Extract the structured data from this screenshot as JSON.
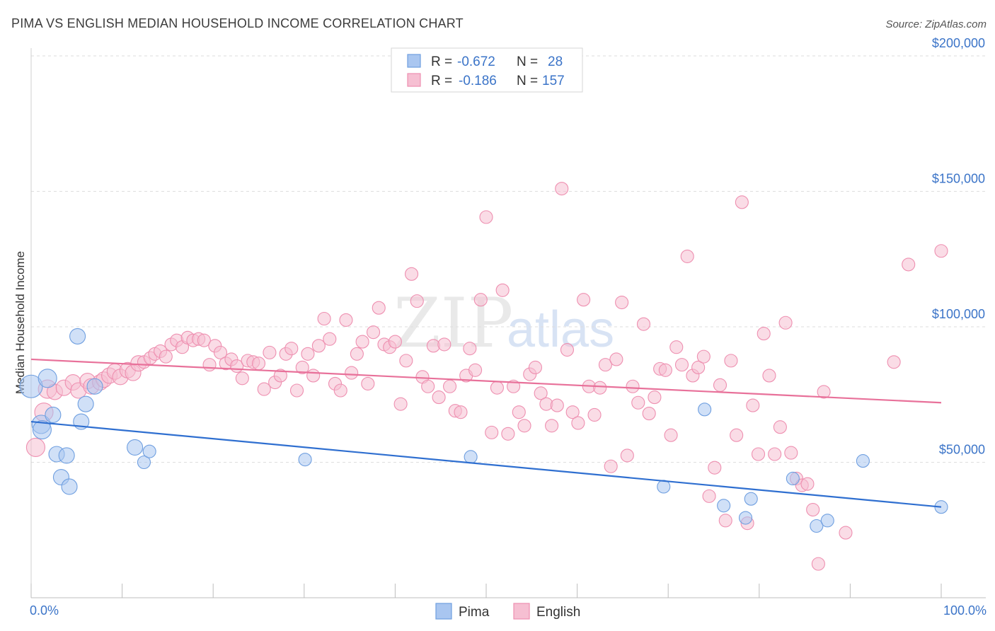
{
  "chart_data": {
    "type": "scatter",
    "title": "PIMA VS ENGLISH MEDIAN HOUSEHOLD INCOME CORRELATION CHART",
    "source": "Source: ZipAtlas.com",
    "xlabel": "",
    "ylabel": "Median Household Income",
    "xlim": [
      0,
      100
    ],
    "ylim": [
      0,
      200000
    ],
    "x_tick_labels": [
      "0.0%",
      "100.0%"
    ],
    "y_ticks": [
      {
        "value": 50000,
        "label": "$50,000"
      },
      {
        "value": 100000,
        "label": "$100,000"
      },
      {
        "value": 150000,
        "label": "$150,000"
      },
      {
        "value": 200000,
        "label": "$200,000"
      }
    ],
    "watermark": {
      "zip": "ZIP",
      "atlas": "atlas"
    },
    "legend": [
      {
        "r_label": "R =",
        "r_value": "-0.672",
        "n_label": "N =",
        "n_value": "28"
      },
      {
        "r_label": "R =",
        "r_value": "-0.186",
        "n_label": "N =",
        "n_value": "157"
      }
    ],
    "series": [
      {
        "name": "Pima",
        "color": "#6f9fe0",
        "fill": "#a9c6f0",
        "line_color": "#2f6fd0",
        "trend": {
          "x": [
            0,
            100
          ],
          "y": [
            65000,
            33500
          ]
        },
        "points": [
          [
            0,
            78000
          ],
          [
            1.1,
            64000
          ],
          [
            1.2,
            62000
          ],
          [
            1.8,
            81000
          ],
          [
            2.4,
            67500
          ],
          [
            2.8,
            53000
          ],
          [
            3.3,
            44500
          ],
          [
            3.9,
            52500
          ],
          [
            4.2,
            41000
          ],
          [
            5.1,
            96500
          ],
          [
            5.5,
            65000
          ],
          [
            6.0,
            71500
          ],
          [
            7.0,
            78000
          ],
          [
            11.4,
            55500
          ],
          [
            12.4,
            50000
          ],
          [
            13.0,
            54000
          ],
          [
            30.1,
            51000
          ],
          [
            48.3,
            52000
          ],
          [
            69.5,
            41000
          ],
          [
            74.0,
            69500
          ],
          [
            76.1,
            34000
          ],
          [
            78.5,
            29500
          ],
          [
            79.1,
            36500
          ],
          [
            83.7,
            44000
          ],
          [
            86.3,
            26500
          ],
          [
            87.5,
            28500
          ],
          [
            91.4,
            50500
          ],
          [
            100,
            33500
          ]
        ]
      },
      {
        "name": "English",
        "color": "#ee8fb0",
        "fill": "#f6bfd2",
        "line_color": "#e8719a",
        "trend": {
          "x": [
            0,
            100
          ],
          "y": [
            88000,
            72000
          ]
        },
        "points": [
          [
            0.5,
            55500
          ],
          [
            1.4,
            68500
          ],
          [
            1.8,
            77000
          ],
          [
            2.6,
            76000
          ],
          [
            3.6,
            77500
          ],
          [
            4.6,
            79500
          ],
          [
            5.2,
            76500
          ],
          [
            6.2,
            80000
          ],
          [
            6.6,
            78000
          ],
          [
            7.6,
            79500
          ],
          [
            8.0,
            80500
          ],
          [
            8.6,
            82000
          ],
          [
            9.2,
            83500
          ],
          [
            9.8,
            81500
          ],
          [
            10.6,
            84000
          ],
          [
            11.2,
            83000
          ],
          [
            11.8,
            86500
          ],
          [
            12.4,
            87000
          ],
          [
            13.1,
            88500
          ],
          [
            13.6,
            90000
          ],
          [
            14.2,
            91000
          ],
          [
            14.8,
            89000
          ],
          [
            15.4,
            93500
          ],
          [
            16.0,
            95000
          ],
          [
            16.6,
            92500
          ],
          [
            17.2,
            96000
          ],
          [
            17.8,
            95000
          ],
          [
            18.4,
            95500
          ],
          [
            19.0,
            95000
          ],
          [
            19.6,
            86000
          ],
          [
            20.2,
            93000
          ],
          [
            20.8,
            90500
          ],
          [
            21.4,
            86500
          ],
          [
            22.0,
            88000
          ],
          [
            22.6,
            85500
          ],
          [
            23.2,
            81000
          ],
          [
            23.8,
            87500
          ],
          [
            24.4,
            87000
          ],
          [
            25.0,
            86500
          ],
          [
            25.6,
            77000
          ],
          [
            26.2,
            90500
          ],
          [
            26.8,
            79500
          ],
          [
            27.4,
            82000
          ],
          [
            28.0,
            90000
          ],
          [
            28.6,
            92000
          ],
          [
            29.2,
            76500
          ],
          [
            29.8,
            85000
          ],
          [
            30.4,
            90000
          ],
          [
            31.0,
            82000
          ],
          [
            31.6,
            93000
          ],
          [
            32.2,
            103000
          ],
          [
            32.8,
            95500
          ],
          [
            33.4,
            79000
          ],
          [
            34.0,
            76500
          ],
          [
            34.6,
            102500
          ],
          [
            35.2,
            83000
          ],
          [
            35.8,
            90000
          ],
          [
            36.4,
            94500
          ],
          [
            37.0,
            79000
          ],
          [
            37.6,
            98000
          ],
          [
            38.2,
            107000
          ],
          [
            38.8,
            93500
          ],
          [
            39.4,
            92500
          ],
          [
            40.0,
            94500
          ],
          [
            40.6,
            71500
          ],
          [
            41.2,
            87500
          ],
          [
            41.8,
            119500
          ],
          [
            42.4,
            109500
          ],
          [
            43.0,
            81500
          ],
          [
            43.6,
            78000
          ],
          [
            44.2,
            93000
          ],
          [
            44.8,
            74000
          ],
          [
            45.4,
            93500
          ],
          [
            46.0,
            78000
          ],
          [
            46.6,
            69000
          ],
          [
            47.2,
            68500
          ],
          [
            47.8,
            82000
          ],
          [
            48.2,
            92000
          ],
          [
            48.8,
            84000
          ],
          [
            49.4,
            110000
          ],
          [
            50.0,
            140500
          ],
          [
            50.6,
            61000
          ],
          [
            51.2,
            77500
          ],
          [
            51.8,
            113500
          ],
          [
            52.4,
            60500
          ],
          [
            53.0,
            78000
          ],
          [
            53.6,
            68500
          ],
          [
            54.2,
            63500
          ],
          [
            54.8,
            82500
          ],
          [
            55.4,
            85000
          ],
          [
            56.0,
            75500
          ],
          [
            56.6,
            71500
          ],
          [
            57.2,
            63500
          ],
          [
            57.8,
            71000
          ],
          [
            58.3,
            151000
          ],
          [
            58.9,
            91500
          ],
          [
            59.5,
            68500
          ],
          [
            60.1,
            64500
          ],
          [
            60.7,
            110000
          ],
          [
            61.3,
            78000
          ],
          [
            61.9,
            67500
          ],
          [
            62.5,
            77500
          ],
          [
            63.1,
            86000
          ],
          [
            63.7,
            48500
          ],
          [
            64.3,
            88000
          ],
          [
            64.9,
            109000
          ],
          [
            65.5,
            52500
          ],
          [
            66.1,
            78000
          ],
          [
            66.7,
            72000
          ],
          [
            67.3,
            101000
          ],
          [
            67.9,
            68000
          ],
          [
            68.5,
            74000
          ],
          [
            69.1,
            84500
          ],
          [
            69.7,
            84000
          ],
          [
            70.3,
            60000
          ],
          [
            70.9,
            92500
          ],
          [
            71.5,
            86000
          ],
          [
            72.1,
            126000
          ],
          [
            72.7,
            82000
          ],
          [
            73.3,
            85000
          ],
          [
            73.9,
            89000
          ],
          [
            74.5,
            37500
          ],
          [
            75.1,
            48000
          ],
          [
            75.7,
            78500
          ],
          [
            76.3,
            28500
          ],
          [
            76.9,
            87500
          ],
          [
            77.5,
            60000
          ],
          [
            78.1,
            146000
          ],
          [
            78.7,
            27500
          ],
          [
            79.3,
            71000
          ],
          [
            79.9,
            53000
          ],
          [
            80.5,
            97500
          ],
          [
            81.1,
            82000
          ],
          [
            81.7,
            53000
          ],
          [
            82.3,
            63000
          ],
          [
            82.9,
            101500
          ],
          [
            83.5,
            53500
          ],
          [
            84.1,
            44000
          ],
          [
            84.7,
            41500
          ],
          [
            85.3,
            42000
          ],
          [
            85.9,
            32500
          ],
          [
            86.5,
            12500
          ],
          [
            87.1,
            76000
          ],
          [
            89.5,
            24000
          ],
          [
            94.8,
            87000
          ],
          [
            96.4,
            123000
          ],
          [
            100,
            128000
          ]
        ]
      }
    ]
  }
}
